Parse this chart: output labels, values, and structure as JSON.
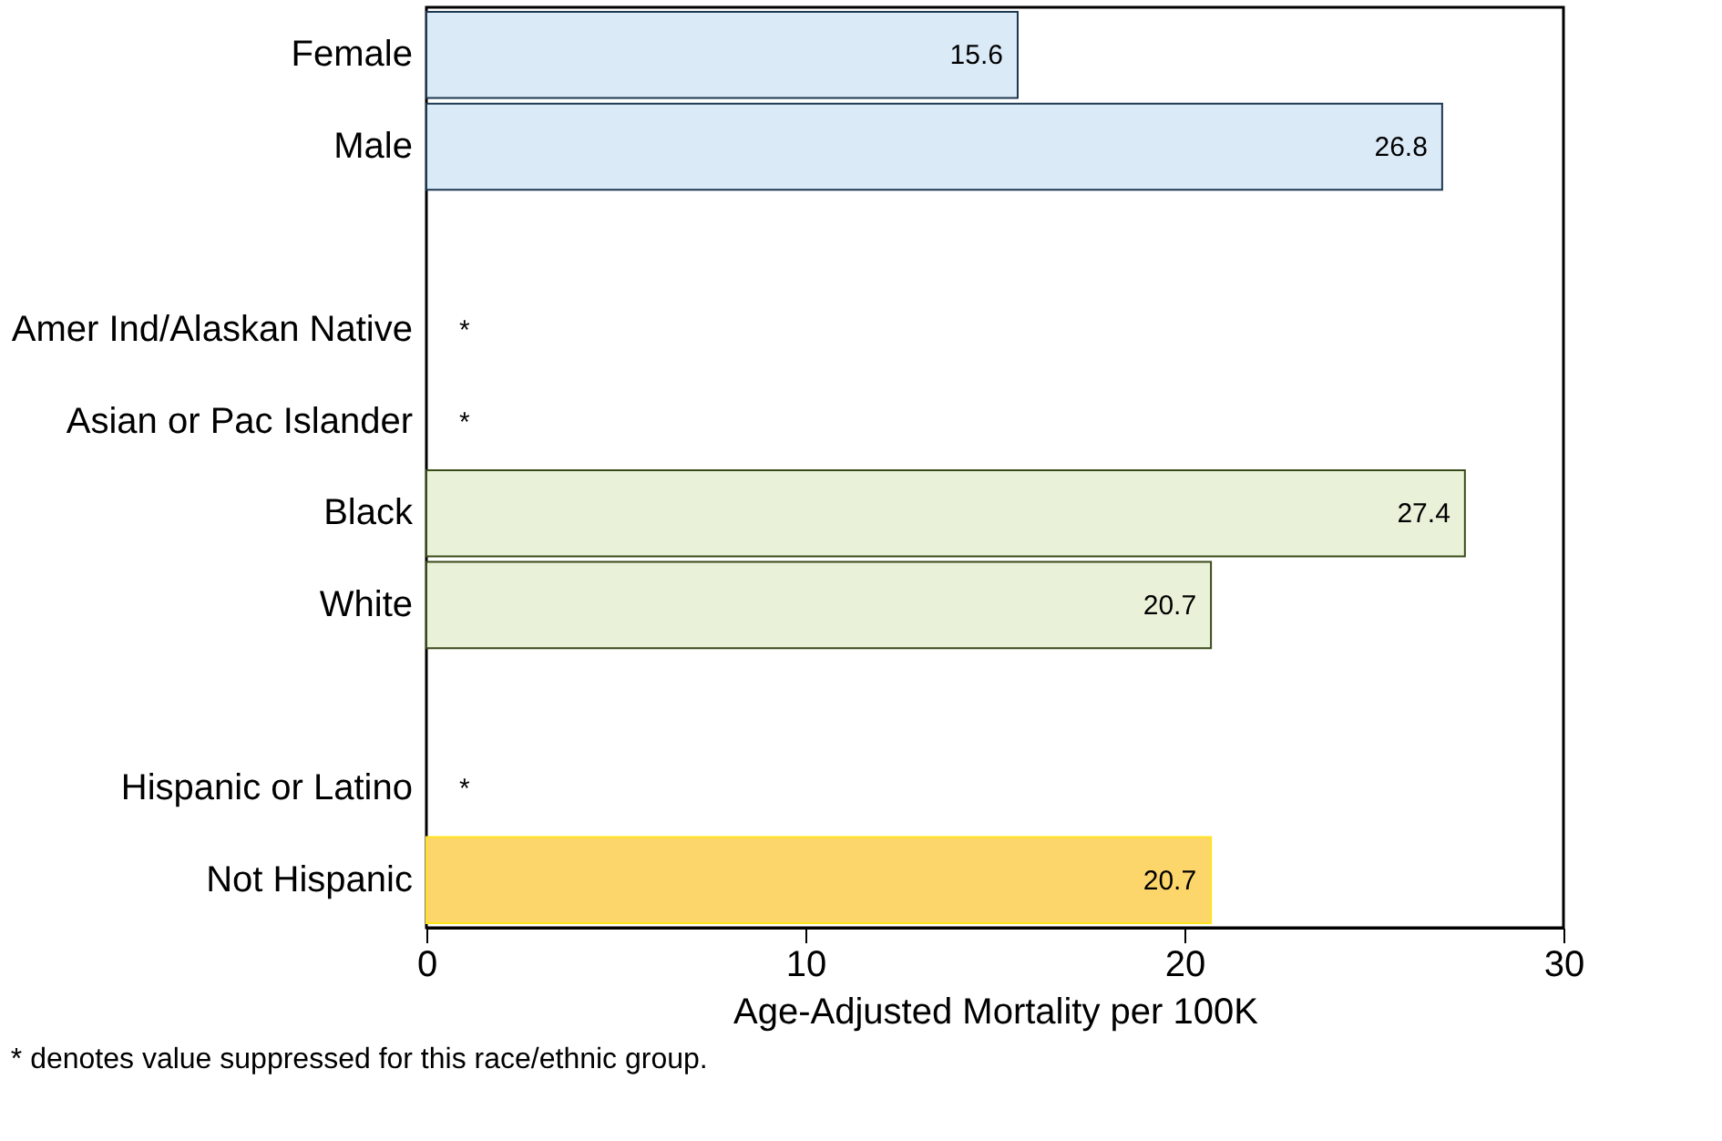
{
  "chart_data": {
    "type": "bar",
    "orientation": "horizontal",
    "xlabel": "Age-Adjusted Mortality per 100K",
    "categories": [
      "Female",
      "Male",
      null,
      "Amer Ind/Alaskan Native",
      "Asian or Pac Islander",
      "Black",
      "White",
      null,
      "Hispanic or Latino",
      "Not Hispanic"
    ],
    "values": [
      15.6,
      26.8,
      null,
      null,
      null,
      27.4,
      20.7,
      null,
      null,
      20.7
    ],
    "colors": [
      "#dbeaf7",
      "#dbeaf7",
      null,
      null,
      null,
      "#e9f2d8",
      "#e9f2d8",
      null,
      null,
      "#fcd56b"
    ],
    "value_labels": [
      "15.6",
      "26.8",
      null,
      "*",
      "*",
      "27.4",
      "20.7",
      null,
      "*",
      "20.7"
    ],
    "xlim": [
      0,
      30
    ],
    "xticks": [
      0,
      10,
      20,
      30
    ],
    "annotations": [
      "* denotes value suppressed for this race/ethnic group."
    ]
  }
}
